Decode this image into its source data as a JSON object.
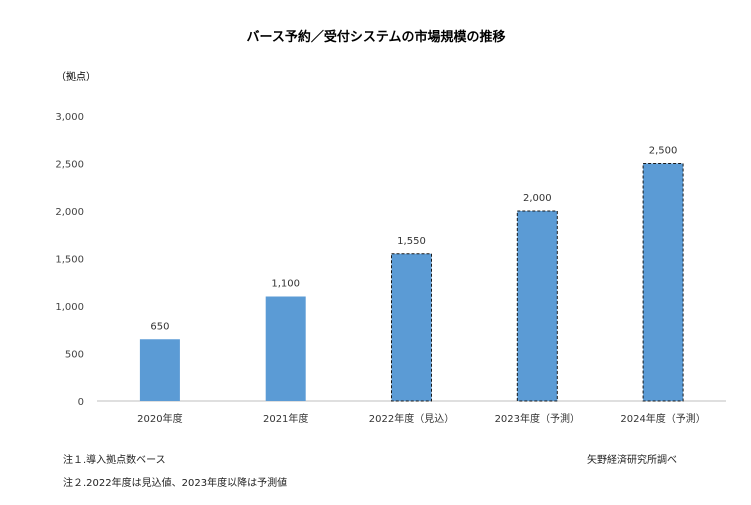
{
  "chart_data": {
    "type": "bar",
    "title": "バース予約／受付システムの市場規模の推移",
    "ylabel": "（拠点）",
    "xlabel": "",
    "categories": [
      "2020年度",
      "2021年度",
      "2022年度（見込）",
      "2023年度（予測）",
      "2024年度（予測）"
    ],
    "values": [
      650,
      1100,
      1550,
      2000,
      2500
    ],
    "value_labels": [
      "650",
      "1,100",
      "1,550",
      "2,000",
      "2,500"
    ],
    "estimated": [
      false,
      false,
      true,
      true,
      true
    ],
    "ylim": [
      0,
      3000
    ],
    "yticks": [
      0,
      500,
      1000,
      1500,
      2000,
      2500,
      3000
    ],
    "ytick_labels": [
      "0",
      "500",
      "1,000",
      "1,500",
      "2,000",
      "2,500",
      "3,000"
    ],
    "grid": false,
    "bar_color": "#5b9bd5"
  },
  "notes": {
    "note1": "注１.導入拠点数ベース",
    "note2": "注２.2022年度は見込値、2023年度以降は予測値",
    "source": "矢野経済研究所調べ"
  }
}
